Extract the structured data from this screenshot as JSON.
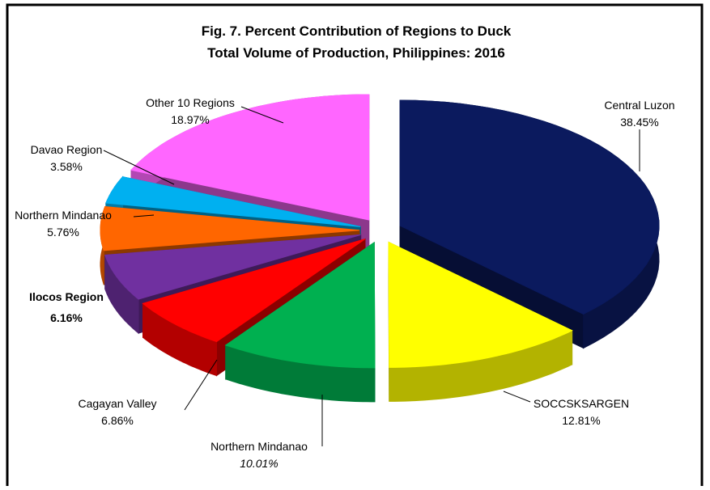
{
  "chart_data": {
    "type": "pie3d",
    "title": [
      "Fig. 7.  Percent Contribution of Regions to Duck",
      "Total Volume of Production, Philippines: 2016"
    ],
    "categories": [
      "Central Luzon",
      "SOCCSKSARGEN",
      "Northern Mindanao",
      "Cagayan Valley",
      "Ilocos Region",
      "Northern Mindanao",
      "Davao Region",
      "Other 10 Regions"
    ],
    "values": [
      38.45,
      12.81,
      10.01,
      6.86,
      6.16,
      5.76,
      3.58,
      18.97
    ],
    "value_labels": [
      "38.45%",
      "12.81%",
      "10.01%",
      "6.86%",
      "6.16%",
      "5.76%",
      "3.58%",
      "18.97%"
    ],
    "colors": [
      "#0b1a5e",
      "#ffff00",
      "#00b050",
      "#ff0000",
      "#7030a0",
      "#ff6600",
      "#00b0f0",
      "#ff66ff"
    ]
  }
}
